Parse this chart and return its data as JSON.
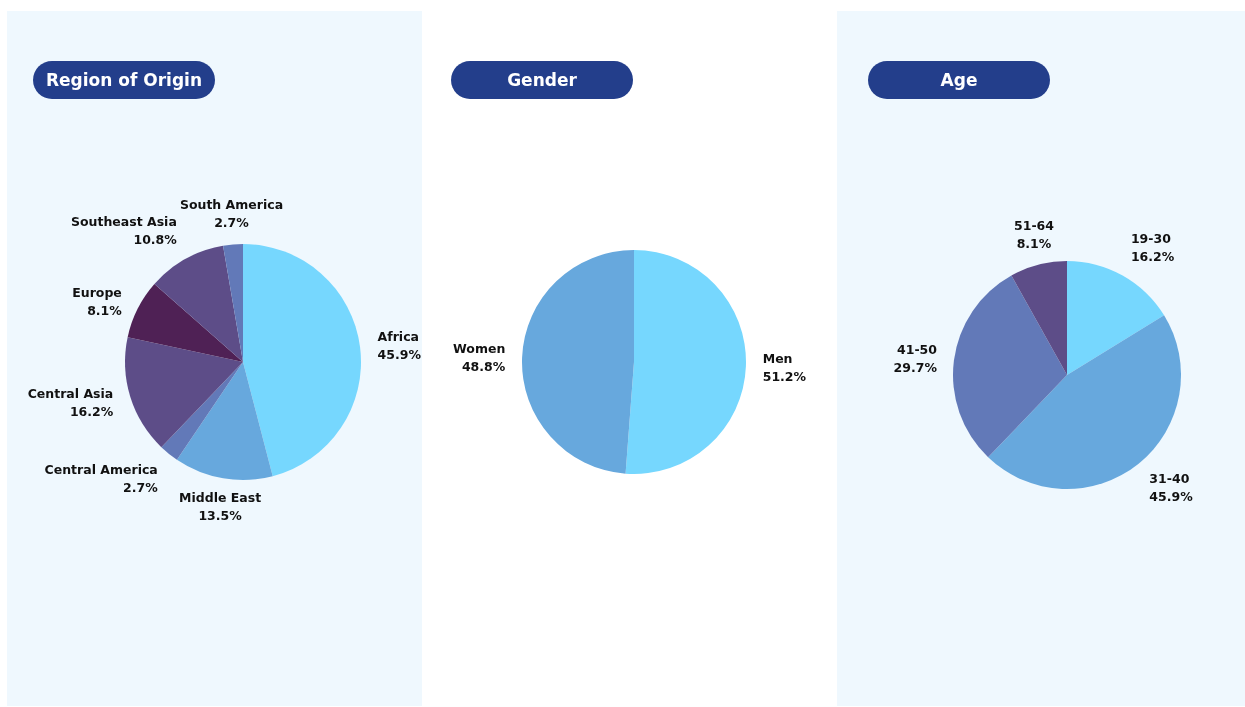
{
  "chart_data": [
    {
      "type": "pie",
      "title": "Region of Origin",
      "categories": [
        "Africa",
        "Middle East",
        "Central America",
        "Central Asia",
        "Europe",
        "Southeast Asia",
        "South America"
      ],
      "values": [
        45.9,
        13.5,
        2.7,
        16.2,
        8.1,
        10.8,
        2.7
      ],
      "value_labels": [
        "45.9%",
        "13.5%",
        "2.7%",
        "16.2%",
        "8.1%",
        "10.8%",
        "2.7%"
      ],
      "colors": [
        "#76d7fe",
        "#67a8dd",
        "#6279b8",
        "#5d4d88",
        "#4f2155",
        "#5d4d88",
        "#6279b8"
      ]
    },
    {
      "type": "pie",
      "title": "Gender",
      "categories": [
        "Men",
        "Women"
      ],
      "values": [
        51.2,
        48.8
      ],
      "value_labels": [
        "51.2%",
        "48.8%"
      ],
      "colors": [
        "#76d7fe",
        "#67a8dd"
      ]
    },
    {
      "type": "pie",
      "title": "Age",
      "categories": [
        "19-30",
        "31-40",
        "41-50",
        "51-64"
      ],
      "values": [
        16.2,
        45.9,
        29.7,
        8.1
      ],
      "value_labels": [
        "16.2%",
        "45.9%",
        "29.7%",
        "8.1%"
      ],
      "colors": [
        "#76d7fe",
        "#67a8dd",
        "#6279b8",
        "#5d4d88"
      ]
    }
  ]
}
